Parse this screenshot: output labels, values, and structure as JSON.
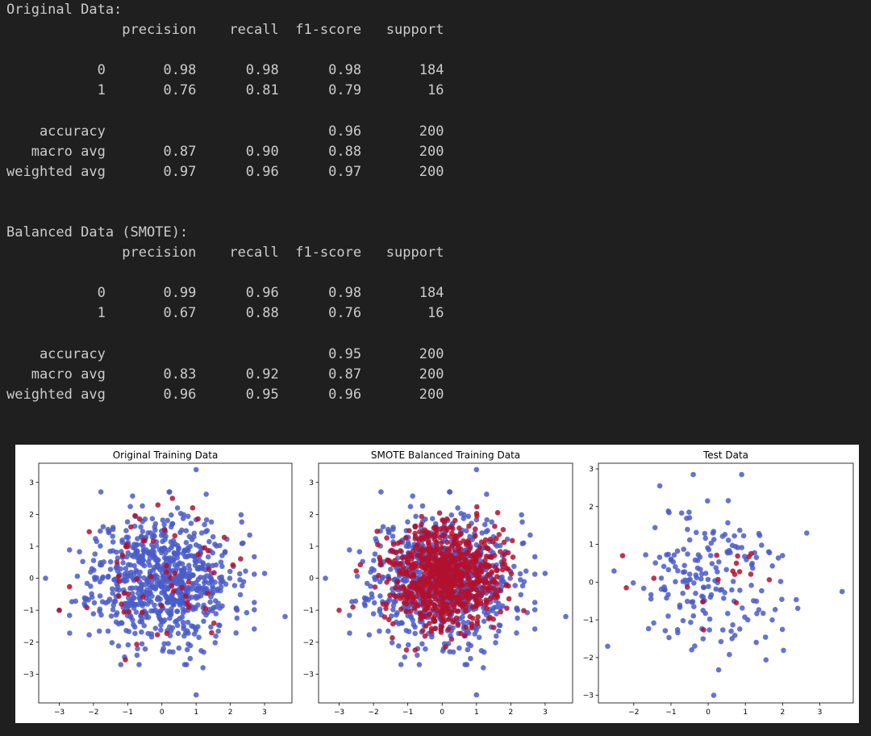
{
  "console": {
    "lines": [
      "Original Data:",
      "              precision    recall  f1-score   support",
      "",
      "           0       0.98      0.98      0.98       184",
      "           1       0.76      0.81      0.79        16",
      "",
      "    accuracy                           0.96       200",
      "   macro avg       0.87      0.90      0.88       200",
      "weighted avg       0.97      0.96      0.97       200",
      "",
      "",
      "Balanced Data (SMOTE):",
      "              precision    recall  f1-score   support",
      "",
      "           0       0.99      0.96      0.98       184",
      "           1       0.67      0.88      0.76        16",
      "",
      "    accuracy                           0.95       200",
      "   macro avg       0.83      0.92      0.87       200",
      "weighted avg       0.96      0.95      0.96       200"
    ]
  },
  "colors": {
    "background": "#1f1f1f",
    "text": "#cccccc",
    "class0": "#4a5cc8",
    "class1": "#b3112e"
  },
  "chart_data": [
    {
      "type": "scatter",
      "title": "Original Training Data",
      "xlim": [
        -3.6,
        3.8
      ],
      "ylim": [
        -3.9,
        3.6
      ],
      "xticks": [
        -3,
        -2,
        -1,
        0,
        1,
        2,
        3
      ],
      "yticks": [
        -3,
        -2,
        -1,
        0,
        1,
        2,
        3
      ],
      "series": [
        {
          "class": 0,
          "color": "#4a5cc8",
          "n_points": 790,
          "distribution": "normal(0,1)",
          "seed": 11,
          "outliers": [
            [
              -3.4,
              0.0
            ],
            [
              3.6,
              -1.2
            ],
            [
              1.0,
              3.4
            ],
            [
              1.0,
              -3.65
            ],
            [
              3.0,
              0.15
            ],
            [
              -1.2,
              -2.7
            ],
            [
              1.2,
              -2.8
            ],
            [
              -3.0,
              -1.0
            ]
          ]
        },
        {
          "class": 1,
          "color": "#b3112e",
          "n_points": 60,
          "distribution": "normal(0,1)",
          "seed": 23,
          "outliers": [
            [
              -3.0,
              -1.0
            ]
          ]
        }
      ],
      "grid": false
    },
    {
      "type": "scatter",
      "title": "SMOTE Balanced Training Data",
      "xlim": [
        -3.6,
        3.8
      ],
      "ylim": [
        -3.9,
        3.6
      ],
      "xticks": [
        -3,
        -2,
        -1,
        0,
        1,
        2,
        3
      ],
      "yticks": [
        -3,
        -2,
        -1,
        0,
        1,
        2,
        3
      ],
      "series": [
        {
          "class": 0,
          "color": "#4a5cc8",
          "n_points": 790,
          "distribution": "normal(0,1)",
          "seed": 11,
          "outliers": [
            [
              -3.4,
              0.0
            ],
            [
              3.6,
              -1.2
            ],
            [
              1.0,
              3.4
            ],
            [
              1.0,
              -3.65
            ],
            [
              3.0,
              0.15
            ],
            [
              -1.2,
              -2.7
            ],
            [
              1.2,
              -2.8
            ]
          ]
        },
        {
          "class": 1,
          "color": "#b3112e",
          "n_points": 780,
          "distribution": "normal(0.1,0.8)",
          "seed": 37,
          "outliers": [
            [
              -3.0,
              -1.0
            ],
            [
              -2.6,
              -0.9
            ]
          ]
        }
      ],
      "grid": false
    },
    {
      "type": "scatter",
      "title": "Test Data",
      "xlim": [
        -2.95,
        3.9
      ],
      "ylim": [
        -3.2,
        3.15
      ],
      "xticks": [
        -2,
        -1,
        0,
        1,
        2,
        3
      ],
      "yticks": [
        -3,
        -2,
        -1,
        0,
        1,
        2,
        3
      ],
      "series": [
        {
          "class": 0,
          "color": "#4a5cc8",
          "n_points": 184,
          "distribution": "normal(0,1)",
          "seed": 51,
          "outliers": [
            [
              -2.7,
              -1.7
            ],
            [
              3.6,
              -0.25
            ],
            [
              0.15,
              -3.0
            ],
            [
              -0.4,
              2.85
            ],
            [
              0.9,
              2.85
            ],
            [
              -1.3,
              2.55
            ],
            [
              2.65,
              1.3
            ]
          ]
        },
        {
          "class": 1,
          "color": "#b3112e",
          "n_points": 16,
          "distribution": "normal(0,0.7)",
          "seed": 63,
          "outliers": [
            [
              -2.2,
              -0.15
            ],
            [
              -2.3,
              0.7
            ]
          ]
        }
      ],
      "grid": false
    }
  ]
}
